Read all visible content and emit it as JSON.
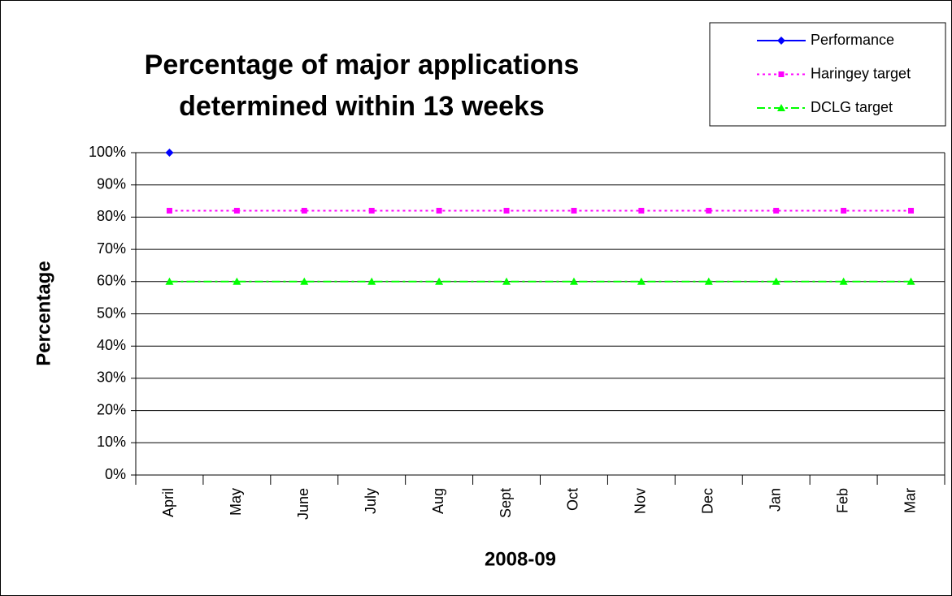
{
  "chart_data": {
    "type": "line",
    "title": [
      "Percentage of major applications",
      "determined within 13 weeks"
    ],
    "x_label": "2008-09",
    "y_label": "Percentage",
    "categories": [
      "April",
      "May",
      "June",
      "July",
      "Aug",
      "Sept",
      "Oct",
      "Nov",
      "Dec",
      "Jan",
      "Feb",
      "Mar"
    ],
    "series": [
      {
        "name": "Performance",
        "color": "#0000ff",
        "marker": "diamond",
        "dash": "solid",
        "values": [
          100,
          null,
          null,
          null,
          null,
          null,
          null,
          null,
          null,
          null,
          null,
          null
        ]
      },
      {
        "name": "Haringey target",
        "color": "#ff00ff",
        "marker": "square",
        "dash": "dotted",
        "values": [
          82,
          82,
          82,
          82,
          82,
          82,
          82,
          82,
          82,
          82,
          82,
          82
        ]
      },
      {
        "name": "DCLG target",
        "color": "#00ff00",
        "marker": "triangle",
        "dash": "dashdot",
        "values": [
          60,
          60,
          60,
          60,
          60,
          60,
          60,
          60,
          60,
          60,
          60,
          60
        ]
      }
    ],
    "ylim": [
      0,
      100
    ],
    "yticks": [
      {
        "value": 0,
        "label": "0%"
      },
      {
        "value": 10,
        "label": "10%"
      },
      {
        "value": 20,
        "label": "20%"
      },
      {
        "value": 30,
        "label": "30%"
      },
      {
        "value": 40,
        "label": "40%"
      },
      {
        "value": 50,
        "label": "50%"
      },
      {
        "value": 60,
        "label": "60%"
      },
      {
        "value": 70,
        "label": "70%"
      },
      {
        "value": 80,
        "label": "80%"
      },
      {
        "value": 90,
        "label": "90%"
      },
      {
        "value": 100,
        "label": "100%"
      }
    ],
    "grid": true,
    "legend": "top-right"
  }
}
